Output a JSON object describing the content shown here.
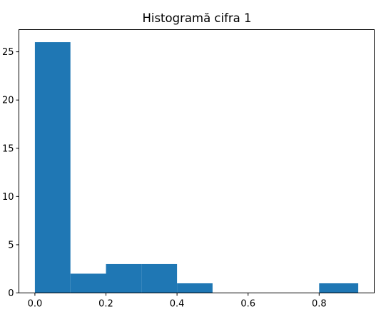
{
  "chart_data": {
    "type": "histogram",
    "title": "Histogramă cifra 1",
    "xlabel": "",
    "ylabel": "",
    "bin_edges": [
      0.0,
      0.1,
      0.2,
      0.3,
      0.4,
      0.5,
      0.6,
      0.7,
      0.8,
      0.91
    ],
    "counts": [
      26,
      2,
      3,
      3,
      1,
      0,
      0,
      0,
      1
    ],
    "xlim": [
      -0.045,
      0.955
    ],
    "ylim": [
      0,
      27.3
    ],
    "x_ticks": [
      0.0,
      0.2,
      0.4,
      0.6,
      0.8
    ],
    "x_tick_labels": [
      "0.0",
      "0.2",
      "0.4",
      "0.6",
      "0.8"
    ],
    "y_ticks": [
      0,
      5,
      10,
      15,
      20,
      25
    ],
    "y_tick_labels": [
      "0",
      "5",
      "10",
      "15",
      "20",
      "25"
    ],
    "bar_color": "#1f77b4",
    "grid": false,
    "legend": "none"
  }
}
